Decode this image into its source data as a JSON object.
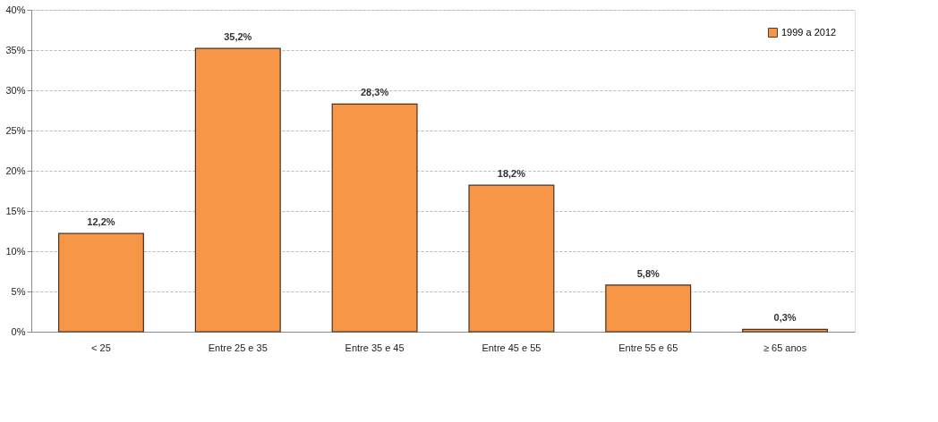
{
  "chart_data": {
    "type": "bar",
    "categories": [
      "< 25",
      "Entre 25 e 35",
      "Entre 35 e 45",
      "Entre 45 e 55",
      "Entre 55 e 65",
      "≥ 65 anos"
    ],
    "series": [
      {
        "name": "1999 a 2012",
        "color": "#f79646",
        "values": [
          12.2,
          35.2,
          28.3,
          18.2,
          5.8,
          0.3
        ],
        "value_labels": [
          "12,2%",
          "35,2%",
          "28,3%",
          "18,2%",
          "5,8%",
          "0,3%"
        ]
      }
    ],
    "ylim": [
      0,
      40
    ],
    "yticks": [
      {
        "value": 0,
        "label": "0%"
      },
      {
        "value": 5,
        "label": "5%"
      },
      {
        "value": 10,
        "label": "10%"
      },
      {
        "value": 15,
        "label": "15%"
      },
      {
        "value": 20,
        "label": "20%"
      },
      {
        "value": 25,
        "label": "25%"
      },
      {
        "value": 30,
        "label": "30%"
      },
      {
        "value": 35,
        "label": "35%"
      },
      {
        "value": 40,
        "label": "40%"
      }
    ],
    "grid": "y",
    "legend": "top right"
  }
}
